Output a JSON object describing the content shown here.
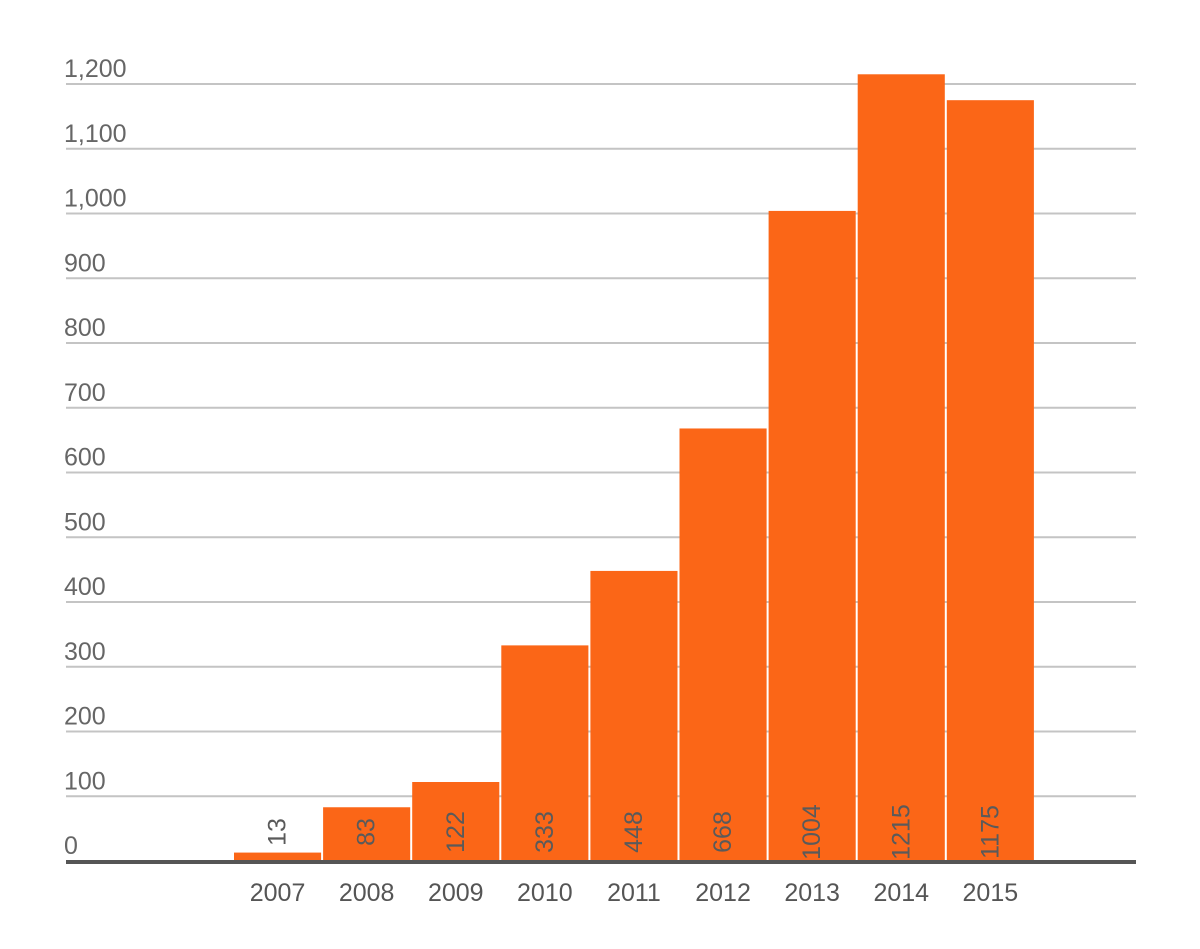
{
  "chart_data": {
    "type": "bar",
    "title": "",
    "xlabel": "",
    "ylabel": "",
    "categories": [
      "2007",
      "2008",
      "2009",
      "2010",
      "2011",
      "2012",
      "2013",
      "2014",
      "2015"
    ],
    "values": [
      13,
      83,
      122,
      333,
      448,
      668,
      1004,
      1215,
      1175
    ],
    "data_labels": [
      "13",
      "83",
      "122",
      "333",
      "448",
      "668",
      "1004",
      "1215",
      "1175"
    ],
    "ylim": [
      0,
      1200
    ],
    "y_ticks": [
      0,
      100,
      200,
      300,
      400,
      500,
      600,
      700,
      800,
      900,
      1000,
      1100,
      1200
    ],
    "y_tick_labels": [
      "0",
      "100",
      "200",
      "300",
      "400",
      "500",
      "600",
      "700",
      "800",
      "900",
      "1,000",
      "1,100",
      "1,200"
    ],
    "grid": true,
    "bar_color": "#fb6617"
  }
}
